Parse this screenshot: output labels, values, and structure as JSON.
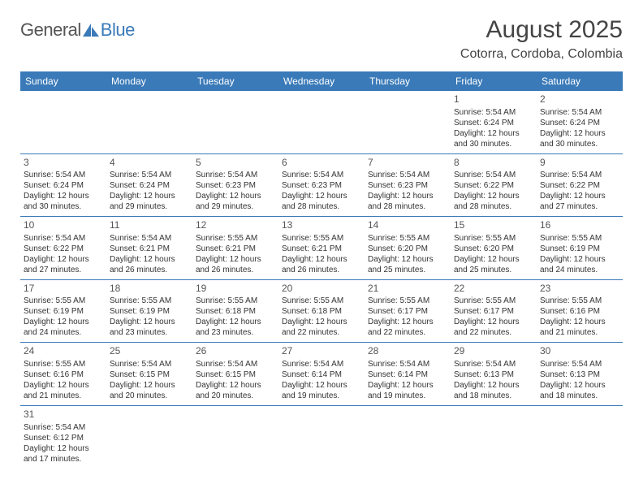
{
  "logo": {
    "general": "General",
    "blue": "Blue",
    "sail_color": "#3a7ab8"
  },
  "title": {
    "month": "August 2025",
    "location": "Cotorra, Cordoba, Colombia"
  },
  "colors": {
    "header_bg": "#3a7ab8",
    "header_text": "#ffffff",
    "border": "#3a7ab8",
    "body_text": "#333333",
    "daynum": "#555555"
  },
  "weekdays": [
    "Sunday",
    "Monday",
    "Tuesday",
    "Wednesday",
    "Thursday",
    "Friday",
    "Saturday"
  ],
  "weeks": [
    [
      null,
      null,
      null,
      null,
      null,
      {
        "n": "1",
        "sr": "Sunrise: 5:54 AM",
        "ss": "Sunset: 6:24 PM",
        "d1": "Daylight: 12 hours",
        "d2": "and 30 minutes."
      },
      {
        "n": "2",
        "sr": "Sunrise: 5:54 AM",
        "ss": "Sunset: 6:24 PM",
        "d1": "Daylight: 12 hours",
        "d2": "and 30 minutes."
      }
    ],
    [
      {
        "n": "3",
        "sr": "Sunrise: 5:54 AM",
        "ss": "Sunset: 6:24 PM",
        "d1": "Daylight: 12 hours",
        "d2": "and 30 minutes."
      },
      {
        "n": "4",
        "sr": "Sunrise: 5:54 AM",
        "ss": "Sunset: 6:24 PM",
        "d1": "Daylight: 12 hours",
        "d2": "and 29 minutes."
      },
      {
        "n": "5",
        "sr": "Sunrise: 5:54 AM",
        "ss": "Sunset: 6:23 PM",
        "d1": "Daylight: 12 hours",
        "d2": "and 29 minutes."
      },
      {
        "n": "6",
        "sr": "Sunrise: 5:54 AM",
        "ss": "Sunset: 6:23 PM",
        "d1": "Daylight: 12 hours",
        "d2": "and 28 minutes."
      },
      {
        "n": "7",
        "sr": "Sunrise: 5:54 AM",
        "ss": "Sunset: 6:23 PM",
        "d1": "Daylight: 12 hours",
        "d2": "and 28 minutes."
      },
      {
        "n": "8",
        "sr": "Sunrise: 5:54 AM",
        "ss": "Sunset: 6:22 PM",
        "d1": "Daylight: 12 hours",
        "d2": "and 28 minutes."
      },
      {
        "n": "9",
        "sr": "Sunrise: 5:54 AM",
        "ss": "Sunset: 6:22 PM",
        "d1": "Daylight: 12 hours",
        "d2": "and 27 minutes."
      }
    ],
    [
      {
        "n": "10",
        "sr": "Sunrise: 5:54 AM",
        "ss": "Sunset: 6:22 PM",
        "d1": "Daylight: 12 hours",
        "d2": "and 27 minutes."
      },
      {
        "n": "11",
        "sr": "Sunrise: 5:54 AM",
        "ss": "Sunset: 6:21 PM",
        "d1": "Daylight: 12 hours",
        "d2": "and 26 minutes."
      },
      {
        "n": "12",
        "sr": "Sunrise: 5:55 AM",
        "ss": "Sunset: 6:21 PM",
        "d1": "Daylight: 12 hours",
        "d2": "and 26 minutes."
      },
      {
        "n": "13",
        "sr": "Sunrise: 5:55 AM",
        "ss": "Sunset: 6:21 PM",
        "d1": "Daylight: 12 hours",
        "d2": "and 26 minutes."
      },
      {
        "n": "14",
        "sr": "Sunrise: 5:55 AM",
        "ss": "Sunset: 6:20 PM",
        "d1": "Daylight: 12 hours",
        "d2": "and 25 minutes."
      },
      {
        "n": "15",
        "sr": "Sunrise: 5:55 AM",
        "ss": "Sunset: 6:20 PM",
        "d1": "Daylight: 12 hours",
        "d2": "and 25 minutes."
      },
      {
        "n": "16",
        "sr": "Sunrise: 5:55 AM",
        "ss": "Sunset: 6:19 PM",
        "d1": "Daylight: 12 hours",
        "d2": "and 24 minutes."
      }
    ],
    [
      {
        "n": "17",
        "sr": "Sunrise: 5:55 AM",
        "ss": "Sunset: 6:19 PM",
        "d1": "Daylight: 12 hours",
        "d2": "and 24 minutes."
      },
      {
        "n": "18",
        "sr": "Sunrise: 5:55 AM",
        "ss": "Sunset: 6:19 PM",
        "d1": "Daylight: 12 hours",
        "d2": "and 23 minutes."
      },
      {
        "n": "19",
        "sr": "Sunrise: 5:55 AM",
        "ss": "Sunset: 6:18 PM",
        "d1": "Daylight: 12 hours",
        "d2": "and 23 minutes."
      },
      {
        "n": "20",
        "sr": "Sunrise: 5:55 AM",
        "ss": "Sunset: 6:18 PM",
        "d1": "Daylight: 12 hours",
        "d2": "and 22 minutes."
      },
      {
        "n": "21",
        "sr": "Sunrise: 5:55 AM",
        "ss": "Sunset: 6:17 PM",
        "d1": "Daylight: 12 hours",
        "d2": "and 22 minutes."
      },
      {
        "n": "22",
        "sr": "Sunrise: 5:55 AM",
        "ss": "Sunset: 6:17 PM",
        "d1": "Daylight: 12 hours",
        "d2": "and 22 minutes."
      },
      {
        "n": "23",
        "sr": "Sunrise: 5:55 AM",
        "ss": "Sunset: 6:16 PM",
        "d1": "Daylight: 12 hours",
        "d2": "and 21 minutes."
      }
    ],
    [
      {
        "n": "24",
        "sr": "Sunrise: 5:55 AM",
        "ss": "Sunset: 6:16 PM",
        "d1": "Daylight: 12 hours",
        "d2": "and 21 minutes."
      },
      {
        "n": "25",
        "sr": "Sunrise: 5:54 AM",
        "ss": "Sunset: 6:15 PM",
        "d1": "Daylight: 12 hours",
        "d2": "and 20 minutes."
      },
      {
        "n": "26",
        "sr": "Sunrise: 5:54 AM",
        "ss": "Sunset: 6:15 PM",
        "d1": "Daylight: 12 hours",
        "d2": "and 20 minutes."
      },
      {
        "n": "27",
        "sr": "Sunrise: 5:54 AM",
        "ss": "Sunset: 6:14 PM",
        "d1": "Daylight: 12 hours",
        "d2": "and 19 minutes."
      },
      {
        "n": "28",
        "sr": "Sunrise: 5:54 AM",
        "ss": "Sunset: 6:14 PM",
        "d1": "Daylight: 12 hours",
        "d2": "and 19 minutes."
      },
      {
        "n": "29",
        "sr": "Sunrise: 5:54 AM",
        "ss": "Sunset: 6:13 PM",
        "d1": "Daylight: 12 hours",
        "d2": "and 18 minutes."
      },
      {
        "n": "30",
        "sr": "Sunrise: 5:54 AM",
        "ss": "Sunset: 6:13 PM",
        "d1": "Daylight: 12 hours",
        "d2": "and 18 minutes."
      }
    ],
    [
      {
        "n": "31",
        "sr": "Sunrise: 5:54 AM",
        "ss": "Sunset: 6:12 PM",
        "d1": "Daylight: 12 hours",
        "d2": "and 17 minutes."
      },
      null,
      null,
      null,
      null,
      null,
      null
    ]
  ]
}
